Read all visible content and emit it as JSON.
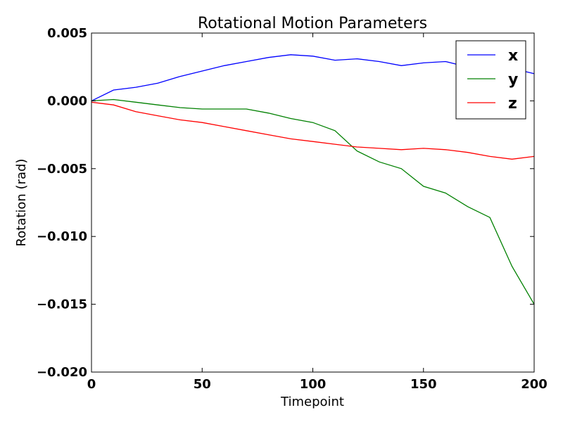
{
  "chart_data": {
    "type": "line",
    "title": "Rotational Motion Parameters",
    "xlabel": "Timepoint",
    "ylabel": "Rotation (rad)",
    "xlim": [
      0,
      200
    ],
    "ylim": [
      -0.02,
      0.005
    ],
    "xticks": [
      0,
      50,
      100,
      150,
      200
    ],
    "xtick_labels": [
      "0",
      "50",
      "100",
      "150",
      "200"
    ],
    "yticks": [
      0.005,
      0.0,
      -0.005,
      -0.01,
      -0.015,
      -0.02
    ],
    "ytick_labels": [
      "0.005",
      "0.000",
      "−0.005",
      "−0.010",
      "−0.015",
      "−0.020"
    ],
    "grid": false,
    "legend_position": "top-right",
    "x": [
      0,
      10,
      20,
      30,
      40,
      50,
      60,
      70,
      80,
      90,
      100,
      110,
      120,
      130,
      140,
      150,
      160,
      170,
      180,
      190,
      200
    ],
    "series": [
      {
        "name": "x",
        "color": "#0000ff",
        "values": [
          0.0,
          0.0008,
          0.001,
          0.0013,
          0.0018,
          0.0022,
          0.0026,
          0.0029,
          0.0032,
          0.0034,
          0.0033,
          0.003,
          0.0031,
          0.0029,
          0.0026,
          0.0028,
          0.0029,
          0.0025,
          0.0027,
          0.0024,
          0.002
        ]
      },
      {
        "name": "y",
        "color": "#008000",
        "values": [
          0.0,
          0.0001,
          -0.0001,
          -0.0003,
          -0.0005,
          -0.0006,
          -0.0006,
          -0.0006,
          -0.0009,
          -0.0013,
          -0.0016,
          -0.0022,
          -0.0037,
          -0.0045,
          -0.005,
          -0.0063,
          -0.0068,
          -0.0078,
          -0.0086,
          -0.0122,
          -0.015
        ]
      },
      {
        "name": "z",
        "color": "#ff0000",
        "values": [
          -0.0001,
          -0.0003,
          -0.0008,
          -0.0011,
          -0.0014,
          -0.0016,
          -0.0019,
          -0.0022,
          -0.0025,
          -0.0028,
          -0.003,
          -0.0032,
          -0.0034,
          -0.0035,
          -0.0036,
          -0.0035,
          -0.0036,
          -0.0038,
          -0.0041,
          -0.0043,
          -0.0041
        ]
      }
    ]
  }
}
